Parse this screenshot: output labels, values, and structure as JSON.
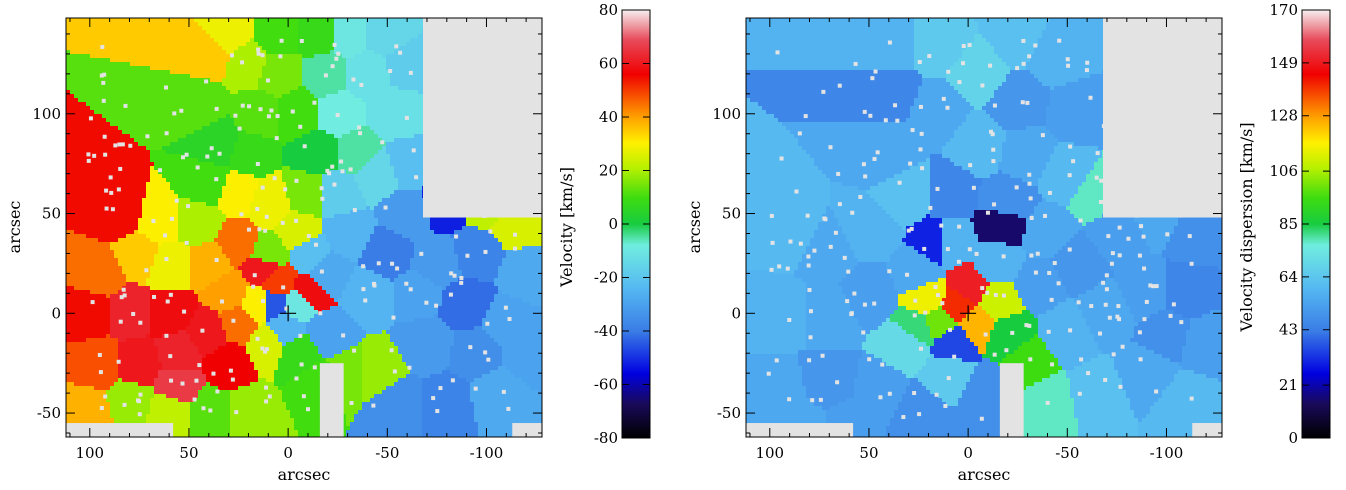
{
  "chart_data": [
    {
      "type": "heatmap",
      "title": "",
      "xlabel": "arcsec",
      "ylabel": "arcsec",
      "xlim": [
        112,
        -128
      ],
      "ylim": [
        -62,
        148
      ],
      "x_ticks": [
        100,
        50,
        0,
        -50,
        -100
      ],
      "x_tick_labels": [
        "100",
        "50",
        "0",
        "-50",
        "-100"
      ],
      "y_ticks": [
        -50,
        0,
        50,
        100
      ],
      "y_tick_labels": [
        "-50",
        "0",
        "50",
        "100"
      ],
      "grid": false,
      "colorbar": {
        "label": "Velocity [km/s]",
        "range": [
          -80,
          80
        ],
        "ticks": [
          80,
          60,
          40,
          20,
          0,
          -20,
          -40,
          -60,
          -80
        ],
        "tick_labels": [
          "80",
          "60",
          "40",
          "20",
          "0",
          "-20",
          "-40",
          "-60",
          "-80"
        ]
      },
      "no_data_color": "#e3e3e3",
      "centre_marker": [
        0,
        0
      ],
      "cells": [
        {
          "x": 85,
          "y": 50,
          "v": 55
        },
        {
          "x": 95,
          "y": 20,
          "v": 45
        },
        {
          "x": 75,
          "y": 30,
          "v": 35
        },
        {
          "x": 100,
          "y": 0,
          "v": 55
        },
        {
          "x": 80,
          "y": 0,
          "v": 62
        },
        {
          "x": 60,
          "y": 0,
          "v": 58
        },
        {
          "x": 95,
          "y": -25,
          "v": 48
        },
        {
          "x": 75,
          "y": -25,
          "v": 60
        },
        {
          "x": 55,
          "y": -20,
          "v": 62
        },
        {
          "x": 55,
          "y": -35,
          "v": 66
        },
        {
          "x": 40,
          "y": -10,
          "v": 60
        },
        {
          "x": 30,
          "y": -25,
          "v": 56
        },
        {
          "x": 100,
          "y": -50,
          "v": 38
        },
        {
          "x": 80,
          "y": -45,
          "v": 18
        },
        {
          "x": 60,
          "y": -50,
          "v": 22
        },
        {
          "x": 40,
          "y": -50,
          "v": 12
        },
        {
          "x": 20,
          "y": -50,
          "v": 18
        },
        {
          "x": 60,
          "y": 25,
          "v": 28
        },
        {
          "x": 40,
          "y": 25,
          "v": 38
        },
        {
          "x": 25,
          "y": 35,
          "v": 45
        },
        {
          "x": 45,
          "y": 45,
          "v": 20
        },
        {
          "x": 65,
          "y": 45,
          "v": 30
        },
        {
          "x": 30,
          "y": 10,
          "v": 40
        },
        {
          "x": 15,
          "y": 5,
          "v": 30
        },
        {
          "x": 10,
          "y": -15,
          "v": 25
        },
        {
          "x": 5,
          "y": 15,
          "v": 50
        },
        {
          "x": -5,
          "y": 5,
          "v": -10
        },
        {
          "x": -5,
          "y": -20,
          "v": 8
        },
        {
          "x": -15,
          "y": -35,
          "v": 10
        },
        {
          "x": 10,
          "y": 30,
          "v": 15
        },
        {
          "x": 25,
          "y": 60,
          "v": 30
        },
        {
          "x": 10,
          "y": 55,
          "v": 28
        },
        {
          "x": -10,
          "y": 60,
          "v": 15
        },
        {
          "x": -5,
          "y": 40,
          "v": 25
        },
        {
          "x": 20,
          "y": 80,
          "v": 8
        },
        {
          "x": 35,
          "y": 85,
          "v": 5
        },
        {
          "x": 45,
          "y": 105,
          "v": 12
        },
        {
          "x": 40,
          "y": 130,
          "v": 35
        },
        {
          "x": 30,
          "y": 140,
          "v": 28
        },
        {
          "x": 20,
          "y": 125,
          "v": 20
        },
        {
          "x": 5,
          "y": 120,
          "v": 15
        },
        {
          "x": -5,
          "y": 100,
          "v": 10
        },
        {
          "x": 15,
          "y": 100,
          "v": 12
        },
        {
          "x": 5,
          "y": 140,
          "v": 10
        },
        {
          "x": -15,
          "y": 140,
          "v": 8
        },
        {
          "x": -20,
          "y": 120,
          "v": -5
        },
        {
          "x": -25,
          "y": 100,
          "v": -8
        },
        {
          "x": -40,
          "y": 120,
          "v": -12
        },
        {
          "x": -50,
          "y": 140,
          "v": -15
        },
        {
          "x": -55,
          "y": 100,
          "v": -12
        },
        {
          "x": -60,
          "y": 125,
          "v": -18
        },
        {
          "x": -30,
          "y": 140,
          "v": -10
        },
        {
          "x": -15,
          "y": 80,
          "v": 0
        },
        {
          "x": -35,
          "y": 80,
          "v": -5
        },
        {
          "x": -25,
          "y": 60,
          "v": -18
        },
        {
          "x": -45,
          "y": 70,
          "v": -15
        },
        {
          "x": -30,
          "y": 40,
          "v": -25
        },
        {
          "x": -20,
          "y": 20,
          "v": -28
        },
        {
          "x": -40,
          "y": 10,
          "v": -25
        },
        {
          "x": -20,
          "y": -10,
          "v": -30
        },
        {
          "x": -30,
          "y": -30,
          "v": 15
        },
        {
          "x": -45,
          "y": -30,
          "v": 18
        },
        {
          "x": -50,
          "y": 30,
          "v": -40
        },
        {
          "x": -60,
          "y": 50,
          "v": -32
        },
        {
          "x": -65,
          "y": 10,
          "v": -30
        },
        {
          "x": -80,
          "y": 55,
          "v": -52
        },
        {
          "x": -95,
          "y": 30,
          "v": -38
        },
        {
          "x": -75,
          "y": 25,
          "v": -32
        },
        {
          "x": -100,
          "y": 55,
          "v": 22
        },
        {
          "x": -115,
          "y": 45,
          "v": 25
        },
        {
          "x": -120,
          "y": 20,
          "v": -28
        },
        {
          "x": -90,
          "y": 5,
          "v": -42
        },
        {
          "x": -110,
          "y": -5,
          "v": -30
        },
        {
          "x": -70,
          "y": -15,
          "v": -32
        },
        {
          "x": -55,
          "y": -45,
          "v": -35
        },
        {
          "x": -80,
          "y": -45,
          "v": -38
        },
        {
          "x": -105,
          "y": -40,
          "v": -28
        },
        {
          "x": -120,
          "y": -20,
          "v": -30
        },
        {
          "x": -95,
          "y": -20,
          "v": -35
        },
        {
          "x": 25,
          "y": -5,
          "v": 45
        },
        {
          "x": 12,
          "y": 22,
          "v": 60
        },
        {
          "x": 8,
          "y": 5,
          "v": -45
        },
        {
          "x": 2,
          "y": -8,
          "v": -25
        },
        {
          "x": -10,
          "y": 30,
          "v": -22
        },
        {
          "x": 40,
          "y": 65,
          "v": 10
        },
        {
          "x": -60,
          "y": 75,
          "v": -22
        },
        {
          "x": -10,
          "y": 10,
          "v": 58
        }
      ]
    },
    {
      "type": "heatmap",
      "title": "",
      "xlabel": "arcsec",
      "ylabel": "arcsec",
      "xlim": [
        112,
        -128
      ],
      "ylim": [
        -62,
        148
      ],
      "x_ticks": [
        100,
        50,
        0,
        -50,
        -100
      ],
      "x_tick_labels": [
        "100",
        "50",
        "0",
        "-50",
        "-100"
      ],
      "y_ticks": [
        -50,
        0,
        50,
        100
      ],
      "y_tick_labels": [
        "-50",
        "0",
        "50",
        "100"
      ],
      "grid": false,
      "colorbar": {
        "label": "Velocity dispersion [km/s]",
        "range": [
          0,
          170
        ],
        "ticks": [
          170,
          149,
          128,
          106,
          85,
          64,
          43,
          21,
          0
        ],
        "tick_labels": [
          "170",
          "149",
          "128",
          "106",
          "85",
          "64",
          "43",
          "21",
          "0"
        ]
      },
      "no_data_color": "#e3e3e3",
      "centre_marker": [
        0,
        0
      ],
      "cells": [
        {
          "x": 90,
          "y": 40,
          "v": 60
        },
        {
          "x": 70,
          "y": 30,
          "v": 55
        },
        {
          "x": 95,
          "y": 0,
          "v": 58
        },
        {
          "x": 70,
          "y": 0,
          "v": 55
        },
        {
          "x": 50,
          "y": 10,
          "v": 52
        },
        {
          "x": 95,
          "y": -40,
          "v": 55
        },
        {
          "x": 70,
          "y": -35,
          "v": 50
        },
        {
          "x": 45,
          "y": -40,
          "v": 52
        },
        {
          "x": 25,
          "y": -50,
          "v": 48
        },
        {
          "x": 50,
          "y": 40,
          "v": 58
        },
        {
          "x": 30,
          "y": 60,
          "v": 62
        },
        {
          "x": 40,
          "y": 80,
          "v": 55
        },
        {
          "x": 40,
          "y": 110,
          "v": 45
        },
        {
          "x": 40,
          "y": 135,
          "v": 58
        },
        {
          "x": 15,
          "y": 135,
          "v": 65
        },
        {
          "x": 15,
          "y": 100,
          "v": 55
        },
        {
          "x": -5,
          "y": 120,
          "v": 68
        },
        {
          "x": -25,
          "y": 140,
          "v": 62
        },
        {
          "x": -25,
          "y": 105,
          "v": 50
        },
        {
          "x": -45,
          "y": 130,
          "v": 58
        },
        {
          "x": -55,
          "y": 100,
          "v": 52
        },
        {
          "x": -5,
          "y": 85,
          "v": 60
        },
        {
          "x": -30,
          "y": 80,
          "v": 55
        },
        {
          "x": -50,
          "y": 70,
          "v": 60
        },
        {
          "x": -20,
          "y": 55,
          "v": 48
        },
        {
          "x": -40,
          "y": 40,
          "v": 55
        },
        {
          "x": 10,
          "y": 60,
          "v": 45
        },
        {
          "x": 10,
          "y": 35,
          "v": 58
        },
        {
          "x": 25,
          "y": 20,
          "v": 55
        },
        {
          "x": -15,
          "y": 25,
          "v": 58
        },
        {
          "x": -35,
          "y": 15,
          "v": 52
        },
        {
          "x": -55,
          "y": 25,
          "v": 50
        },
        {
          "x": -75,
          "y": 40,
          "v": 52
        },
        {
          "x": -95,
          "y": 50,
          "v": 55
        },
        {
          "x": -115,
          "y": 40,
          "v": 48
        },
        {
          "x": -110,
          "y": 10,
          "v": 45
        },
        {
          "x": -90,
          "y": 10,
          "v": 52
        },
        {
          "x": -70,
          "y": 0,
          "v": 55
        },
        {
          "x": -50,
          "y": -10,
          "v": 58
        },
        {
          "x": -30,
          "y": -25,
          "v": 95
        },
        {
          "x": -40,
          "y": -45,
          "v": 78
        },
        {
          "x": -65,
          "y": -40,
          "v": 62
        },
        {
          "x": -90,
          "y": -30,
          "v": 55
        },
        {
          "x": -110,
          "y": -45,
          "v": 60
        },
        {
          "x": -120,
          "y": -15,
          "v": 52
        },
        {
          "x": 10,
          "y": -30,
          "v": 65
        },
        {
          "x": -10,
          "y": -40,
          "v": 48
        },
        {
          "x": 30,
          "y": -15,
          "v": 70
        },
        {
          "x": 15,
          "y": -5,
          "v": 100
        },
        {
          "x": 20,
          "y": 8,
          "v": 115
        },
        {
          "x": 5,
          "y": 5,
          "v": 140
        },
        {
          "x": -5,
          "y": -5,
          "v": 125
        },
        {
          "x": -15,
          "y": 5,
          "v": 110
        },
        {
          "x": 0,
          "y": 12,
          "v": 150
        },
        {
          "x": 25,
          "y": -8,
          "v": 82
        },
        {
          "x": -20,
          "y": -10,
          "v": 85
        },
        {
          "x": 8,
          "y": -15,
          "v": 35
        },
        {
          "x": 15,
          "y": 35,
          "v": 30
        },
        {
          "x": -18,
          "y": 45,
          "v": 15
        },
        {
          "x": 60,
          "y": -55,
          "v": 52
        },
        {
          "x": 85,
          "y": -55,
          "v": 55
        },
        {
          "x": -65,
          "y": 60,
          "v": 78
        },
        {
          "x": -100,
          "y": -10,
          "v": 48
        }
      ]
    }
  ]
}
